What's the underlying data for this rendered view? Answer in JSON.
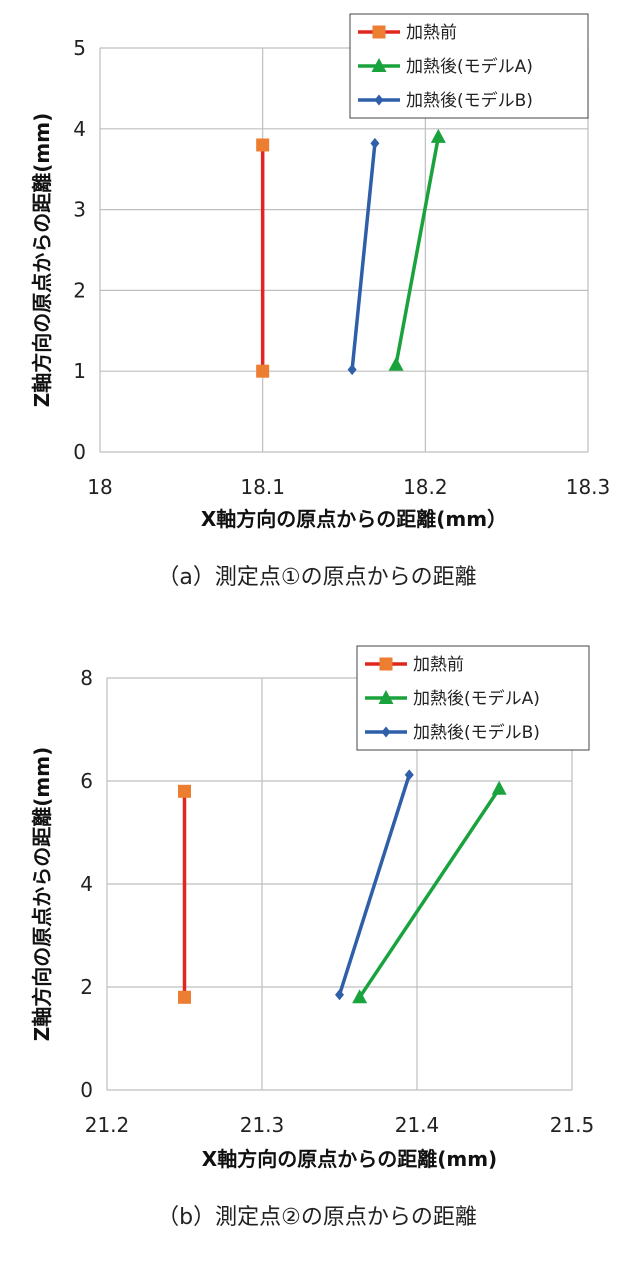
{
  "chart_data": [
    {
      "type": "line",
      "caption": "（a）測定点①の原点からの距離",
      "xlabel": "X軸方向の原点からの距離(mm）",
      "ylabel": "Z軸方向の原点からの距離(mm)",
      "xlim": [
        18,
        18.3
      ],
      "ylim": [
        0,
        5
      ],
      "x_ticks": [
        "18",
        "18.1",
        "18.2",
        "18.3"
      ],
      "y_ticks": [
        "0",
        "1",
        "2",
        "3",
        "4",
        "5"
      ],
      "grid": true,
      "legend_position": "top-right",
      "series": [
        {
          "name": "加熱前",
          "color": "#e0261f",
          "marker_color": "#ed7d31",
          "marker": "square",
          "x": [
            18.1,
            18.1
          ],
          "y": [
            1.0,
            3.8
          ]
        },
        {
          "name": "加熱後(モデルA)",
          "color": "#1aa33c",
          "marker_color": "#1aa33c",
          "marker": "triangle",
          "x": [
            18.182,
            18.208
          ],
          "y": [
            1.08,
            3.9
          ]
        },
        {
          "name": "加熱後(モデルB)",
          "color": "#2f5fa8",
          "marker_color": "#2f5fa8",
          "marker": "diamond",
          "x": [
            18.155,
            18.169
          ],
          "y": [
            1.02,
            3.82
          ]
        }
      ]
    },
    {
      "type": "line",
      "caption": "（b）測定点②の原点からの距離",
      "xlabel": "X軸方向の原点からの距離(mm)",
      "ylabel": "Z軸方向の原点からの距離(mm)",
      "xlim": [
        21.2,
        21.5
      ],
      "ylim": [
        0,
        8
      ],
      "x_ticks": [
        "21.2",
        "21.3",
        "21.4",
        "21.5"
      ],
      "y_ticks": [
        "0",
        "2",
        "4",
        "6",
        "8"
      ],
      "grid": true,
      "legend_position": "top-right",
      "series": [
        {
          "name": "加熱前",
          "color": "#e0261f",
          "marker_color": "#ed7d31",
          "marker": "square",
          "x": [
            21.25,
            21.25
          ],
          "y": [
            1.8,
            5.8
          ]
        },
        {
          "name": "加熱後(モデルA)",
          "color": "#1aa33c",
          "marker_color": "#1aa33c",
          "marker": "triangle",
          "x": [
            21.363,
            21.453
          ],
          "y": [
            1.8,
            5.85
          ]
        },
        {
          "name": "加熱後(モデルB)",
          "color": "#2f5fa8",
          "marker_color": "#2f5fa8",
          "marker": "diamond",
          "x": [
            21.35,
            21.395
          ],
          "y": [
            1.85,
            6.12
          ]
        }
      ]
    }
  ]
}
